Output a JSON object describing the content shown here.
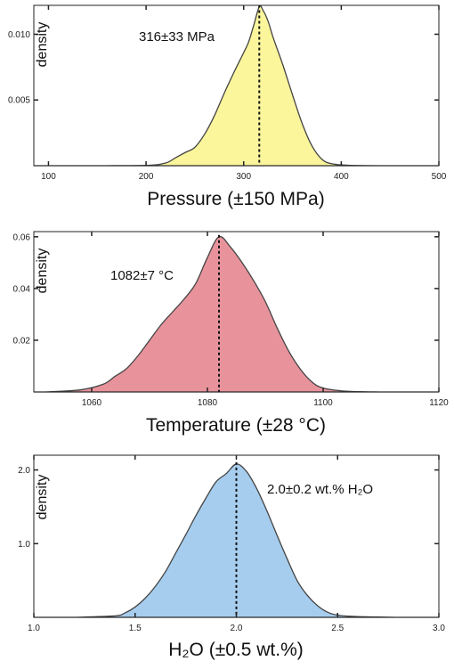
{
  "chart_data": [
    {
      "type": "area",
      "ylabel": "density",
      "xlabel": "Pressure (±150 MPa)",
      "annotation": "316±33 MPa",
      "fill_color": "#fbf59c",
      "mean": 316,
      "xlim": [
        85,
        500
      ],
      "ylim": [
        0,
        0.0122
      ],
      "xticks": [
        100,
        200,
        300,
        400,
        500
      ],
      "xtick_labels": [
        "100",
        "200",
        "300",
        "400",
        "500"
      ],
      "yticks": [
        0.005,
        0.01
      ],
      "ytick_labels": [
        "0.005",
        "0.010"
      ],
      "x": [
        150,
        200,
        220,
        230,
        240,
        250,
        260,
        270,
        280,
        290,
        300,
        305,
        310,
        316,
        320,
        325,
        330,
        340,
        350,
        360,
        370,
        380,
        390,
        410,
        450
      ],
      "y": [
        0,
        2e-05,
        0.0002,
        0.0006,
        0.001,
        0.0014,
        0.0024,
        0.0038,
        0.0055,
        0.0071,
        0.0086,
        0.0094,
        0.0106,
        0.0121,
        0.0118,
        0.011,
        0.0098,
        0.0077,
        0.0054,
        0.0032,
        0.0015,
        0.0005,
        0.00015,
        2e-05,
        0
      ]
    },
    {
      "type": "area",
      "ylabel": "density",
      "xlabel": "Temperature (±28 °C)",
      "annotation": "1082±7 °C",
      "fill_color": "#e8939c",
      "mean": 1082,
      "xlim": [
        1050,
        1120
      ],
      "ylim": [
        0,
        0.062
      ],
      "xticks": [
        1060,
        1080,
        1100,
        1120
      ],
      "xtick_labels": [
        "1060",
        "1080",
        "1100",
        "1120"
      ],
      "yticks": [
        0.02,
        0.04,
        0.06
      ],
      "ytick_labels": [
        "0.02",
        "0.04",
        "0.06"
      ],
      "x": [
        1052,
        1058,
        1062,
        1064,
        1066,
        1068,
        1070,
        1072,
        1074,
        1076,
        1078,
        1080,
        1082,
        1084,
        1086,
        1088,
        1090,
        1092,
        1094,
        1096,
        1098,
        1100,
        1104,
        1110
      ],
      "y": [
        0,
        0.0008,
        0.003,
        0.006,
        0.009,
        0.014,
        0.02,
        0.026,
        0.031,
        0.036,
        0.042,
        0.052,
        0.06,
        0.056,
        0.05,
        0.043,
        0.035,
        0.025,
        0.016,
        0.009,
        0.004,
        0.0015,
        0.0003,
        0
      ]
    },
    {
      "type": "area",
      "ylabel": "density",
      "xlabel": "H₂O (±0.5 wt.%)",
      "annotation": "2.0±0.2 wt.% H₂O",
      "fill_color": "#a6cdee",
      "mean": 2.0,
      "xlim": [
        1.0,
        3.0
      ],
      "ylim": [
        0,
        2.2
      ],
      "xticks": [
        1.0,
        1.5,
        2.0,
        2.5,
        3.0
      ],
      "xtick_labels": [
        "1.0",
        "1.5",
        "2.0",
        "2.5",
        "3.0"
      ],
      "yticks": [
        1.0,
        2.0
      ],
      "ytick_labels": [
        "1.0",
        "2.0"
      ],
      "x": [
        1.2,
        1.4,
        1.45,
        1.5,
        1.55,
        1.6,
        1.65,
        1.7,
        1.75,
        1.8,
        1.85,
        1.9,
        1.95,
        2.0,
        2.05,
        2.1,
        2.15,
        2.2,
        2.25,
        2.3,
        2.35,
        2.4,
        2.45,
        2.5,
        2.6,
        2.8
      ],
      "y": [
        0,
        0.02,
        0.06,
        0.14,
        0.26,
        0.42,
        0.62,
        0.87,
        1.12,
        1.38,
        1.62,
        1.84,
        1.95,
        2.08,
        1.98,
        1.75,
        1.45,
        1.12,
        0.8,
        0.5,
        0.3,
        0.16,
        0.07,
        0.03,
        0.01,
        0
      ]
    }
  ]
}
